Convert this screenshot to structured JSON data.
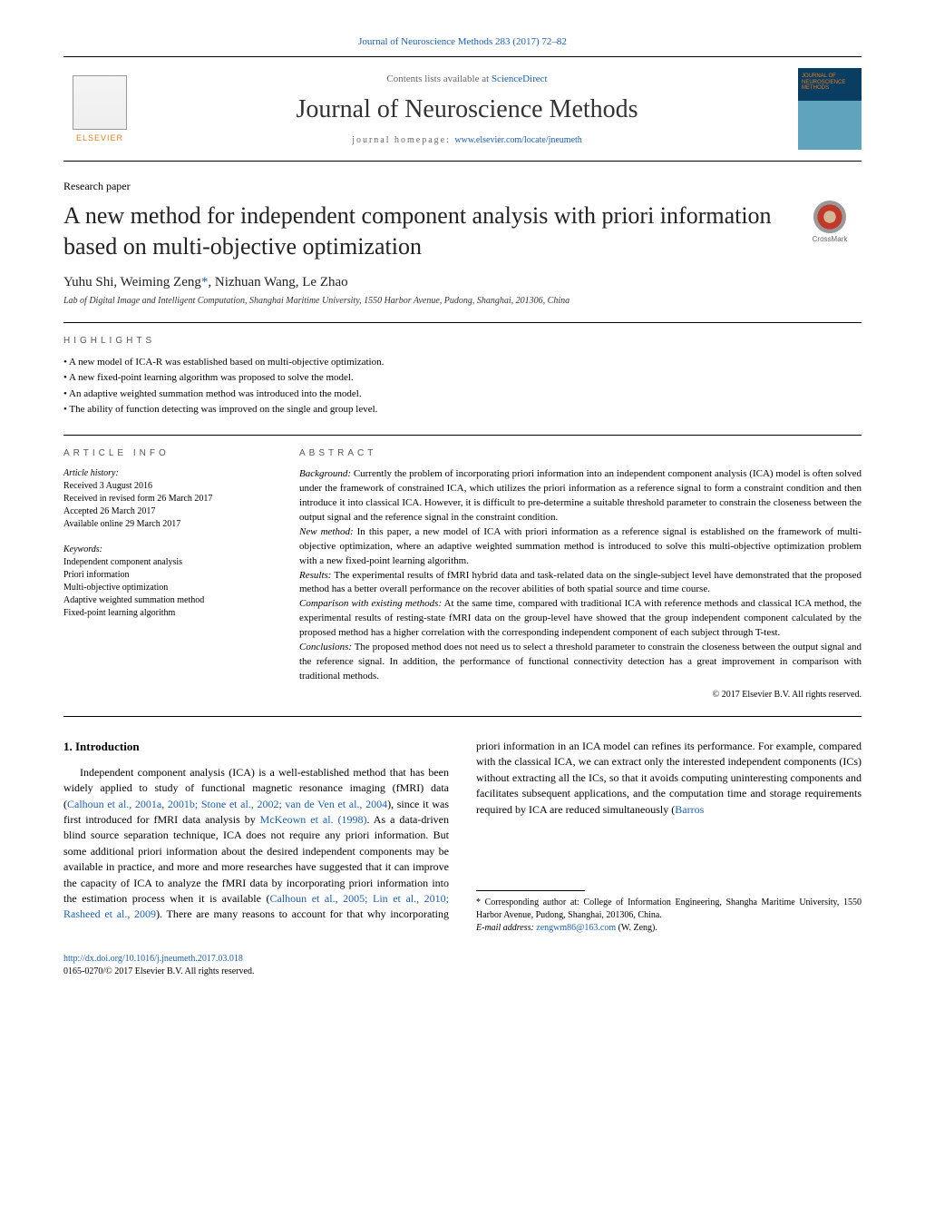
{
  "header": {
    "citation": "Journal of Neuroscience Methods 283 (2017) 72–82",
    "contents_prefix": "Contents lists available at ",
    "contents_link": "ScienceDirect",
    "journal_name": "Journal of Neuroscience Methods",
    "homepage_prefix": "journal homepage: ",
    "homepage_url": "www.elsevier.com/locate/jneumeth",
    "publisher": "ELSEVIER",
    "cover_text": "JOURNAL OF\nNEUROSCIENCE\nMETHODS"
  },
  "article": {
    "type": "Research paper",
    "title": "A new method for independent component analysis with priori information based on multi-objective optimization",
    "crossmark_label": "CrossMark",
    "authors_text": "Yuhu Shi, Weiming Zeng",
    "authors_corr_mark": "*",
    "authors_rest": ", Nizhuan Wang, Le Zhao",
    "affiliation": "Lab of Digital Image and Intelligent Computation, Shanghai Maritime University, 1550 Harbor Avenue, Pudong, Shanghai, 201306, China"
  },
  "highlights": {
    "label": "HIGHLIGHTS",
    "items": [
      "A new model of ICA-R was established based on multi-objective optimization.",
      "A new fixed-point learning algorithm was proposed to solve the model.",
      "An adaptive weighted summation method was introduced into the model.",
      "The ability of function detecting was improved on the single and group level."
    ]
  },
  "article_info": {
    "label": "ARTICLE INFO",
    "history_label": "Article history:",
    "history": [
      "Received 3 August 2016",
      "Received in revised form 26 March 2017",
      "Accepted 26 March 2017",
      "Available online 29 March 2017"
    ],
    "keywords_label": "Keywords:",
    "keywords": [
      "Independent component analysis",
      "Priori information",
      "Multi-objective optimization",
      "Adaptive weighted summation method",
      "Fixed-point learning algorithm"
    ]
  },
  "abstract": {
    "label": "ABSTRACT",
    "segments": [
      {
        "label": "Background:",
        "text": " Currently the problem of incorporating priori information into an independent component analysis (ICA) model is often solved under the framework of constrained ICA, which utilizes the priori information as a reference signal to form a constraint condition and then introduce it into classical ICA. However, it is difficult to pre-determine a suitable threshold parameter to constrain the closeness between the output signal and the reference signal in the constraint condition."
      },
      {
        "label": "New method:",
        "text": " In this paper, a new model of ICA with priori information as a reference signal is established on the framework of multi-objective optimization, where an adaptive weighted summation method is introduced to solve this multi-objective optimization problem with a new fixed-point learning algorithm."
      },
      {
        "label": "Results:",
        "text": " The experimental results of fMRI hybrid data and task-related data on the single-subject level have demonstrated that the proposed method has a better overall performance on the recover abilities of both spatial source and time course."
      },
      {
        "label": "Comparison with existing methods:",
        "text": " At the same time, compared with traditional ICA with reference methods and classical ICA method, the experimental results of resting-state fMRI data on the group-level have showed that the group independent component calculated by the proposed method has a higher correlation with the corresponding independent component of each subject through T-test."
      },
      {
        "label": "Conclusions:",
        "text": " The proposed method does not need us to select a threshold parameter to constrain the closeness between the output signal and the reference signal. In addition, the performance of functional connectivity detection has a great improvement in comparison with traditional methods."
      }
    ],
    "copyright": "© 2017 Elsevier B.V. All rights reserved."
  },
  "body": {
    "heading": "1. Introduction",
    "para1_pre": "Independent component analysis (ICA) is a well-established method that has been widely applied to study of functional magnetic resonance imaging (fMRI) data (",
    "para1_link1": "Calhoun et al., 2001a, 2001b; Stone et al., 2002; van de Ven et al., 2004",
    "para1_mid": "), since it was first introduced for fMRI data analysis by ",
    "para1_link2": "McKeown et al. (1998)",
    "para1_post": ". As a data-driven blind source separation technique, ICA does not require any",
    "para2_pre": "priori information. But some additional priori information about the desired independent components may be available in practice, and more and more researches have suggested that it can improve the capacity of ICA to analyze the fMRI data by incorporating priori information into the estimation process when it is available (",
    "para2_link1": "Calhoun et al., 2005; Lin et al., 2010; Rasheed et al., 2009",
    "para2_mid": "). There are many reasons to account for that why incorporating priori information in an ICA model can refines its performance. For example, compared with the classical ICA, we can extract only the interested independent components (ICs) without extracting all the ICs, so that it avoids computing uninteresting components and facilitates subsequent applications, and the computation time and storage requirements required by ICA are reduced simultaneously (",
    "para2_link2": "Barros"
  },
  "footnotes": {
    "corr": "Corresponding author at: College of Information Engineering, Shangha Maritime University, 1550 Harbor Avenue, Pudong, Shanghai, 201306, China.",
    "email_label": "E-mail address: ",
    "email": "zengwm86@163.com",
    "email_suffix": " (W. Zeng)."
  },
  "footer": {
    "doi": "http://dx.doi.org/10.1016/j.jneumeth.2017.03.018",
    "issn_copyright": "0165-0270/© 2017 Elsevier B.V. All rights reserved."
  },
  "colors": {
    "link": "#1a5fb4",
    "publisher_orange": "#e67e22",
    "text": "#000000"
  }
}
